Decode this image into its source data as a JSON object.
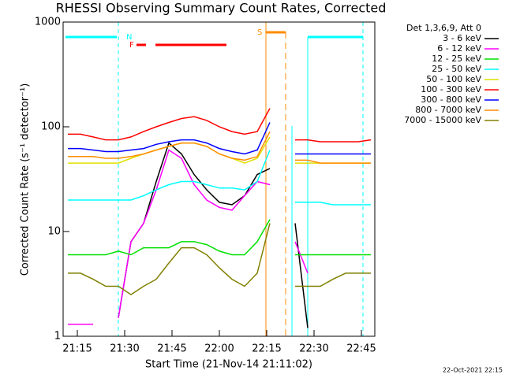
{
  "chart_data": {
    "type": "line",
    "title": "RHESSI Observing Summary Count Rates, Corrected",
    "x_label": "Start Time (21-Nov-14 21:11:02)",
    "y_label": "Corrected Count Rate (s⁻¹ detector⁻¹)",
    "legend_title": "Det 1,3,6,9, Att 0",
    "timestamp": "22-Oct-2021 22:15",
    "annotations": [
      "N",
      "F",
      "S"
    ],
    "log_y": true,
    "xlim": [
      10.5,
      109.25
    ],
    "ylim": [
      1,
      1000
    ],
    "xticks": [
      {
        "value": 15,
        "label": "21:15"
      },
      {
        "value": 30,
        "label": "21:30"
      },
      {
        "value": 45,
        "label": "21:45"
      },
      {
        "value": 60,
        "label": "22:00"
      },
      {
        "value": 75,
        "label": "22:15"
      },
      {
        "value": 90,
        "label": "22:30"
      },
      {
        "value": 105,
        "label": "22:45"
      }
    ],
    "yticks": [
      1,
      10,
      100,
      1000
    ],
    "x": [
      12,
      16,
      20,
      24,
      28,
      32,
      36,
      40,
      44,
      48,
      52,
      56,
      60,
      64,
      68,
      72,
      76,
      80,
      84,
      88,
      92,
      96,
      100,
      104,
      108
    ],
    "series": [
      {
        "name": "3 - 6 keV",
        "color": "#000000",
        "values": [
          null,
          null,
          null,
          null,
          1.5,
          8,
          12,
          30,
          70,
          55,
          35,
          25,
          19,
          18,
          22,
          35,
          40,
          null,
          12,
          1.2,
          null,
          null,
          null,
          null,
          null
        ]
      },
      {
        "name": "6 - 12 keV",
        "color": "#ff00ff",
        "values": [
          1.3,
          1.3,
          1.3,
          null,
          1.5,
          8,
          12,
          25,
          60,
          50,
          28,
          20,
          17,
          16,
          22,
          30,
          28,
          null,
          8,
          4,
          null,
          null,
          null,
          null,
          null
        ]
      },
      {
        "name": "12 - 25 keV",
        "color": "#00e000",
        "values": [
          6,
          6,
          6,
          6,
          6.5,
          6,
          7,
          7,
          7,
          8,
          8,
          7.5,
          6.5,
          6,
          6,
          8,
          13,
          null,
          6,
          6,
          6,
          6,
          6,
          6,
          6
        ]
      },
      {
        "name": "25 - 50 keV",
        "color": "#00ffff",
        "values": [
          20,
          20,
          20,
          20,
          20,
          20,
          22,
          25,
          28,
          30,
          30,
          28,
          26,
          26,
          25,
          30,
          60,
          null,
          19,
          19,
          19,
          18,
          18,
          18,
          18
        ]
      },
      {
        "name": "50 - 100 keV",
        "color": "#e0e000",
        "values": [
          45,
          45,
          45,
          45,
          45,
          50,
          55,
          60,
          65,
          70,
          70,
          65,
          55,
          50,
          45,
          50,
          80,
          null,
          45,
          45,
          45,
          45,
          45,
          45,
          45
        ]
      },
      {
        "name": "100 - 300 keV",
        "color": "#ff0000",
        "values": [
          85,
          85,
          80,
          75,
          75,
          80,
          90,
          100,
          110,
          120,
          125,
          115,
          100,
          90,
          85,
          90,
          150,
          null,
          75,
          75,
          72,
          72,
          72,
          72,
          75
        ]
      },
      {
        "name": "300 - 800 keV",
        "color": "#0000ff",
        "values": [
          62,
          62,
          60,
          58,
          58,
          60,
          62,
          68,
          72,
          75,
          75,
          70,
          62,
          58,
          55,
          60,
          110,
          null,
          55,
          55,
          55,
          55,
          55,
          55,
          55
        ]
      },
      {
        "name": "800 - 7000 keV",
        "color": "#ff8c00",
        "values": [
          52,
          52,
          52,
          50,
          50,
          52,
          55,
          60,
          65,
          70,
          70,
          65,
          55,
          50,
          48,
          52,
          90,
          null,
          48,
          48,
          45,
          45,
          45,
          45,
          45
        ]
      },
      {
        "name": "7000 - 15000 keV",
        "color": "#808000",
        "values": [
          4,
          4,
          3.5,
          3,
          3,
          2.5,
          3,
          3.5,
          5,
          7,
          7,
          6,
          4.5,
          3.5,
          3,
          4,
          12,
          null,
          3,
          3,
          3,
          3.5,
          4,
          4,
          4
        ]
      }
    ]
  }
}
